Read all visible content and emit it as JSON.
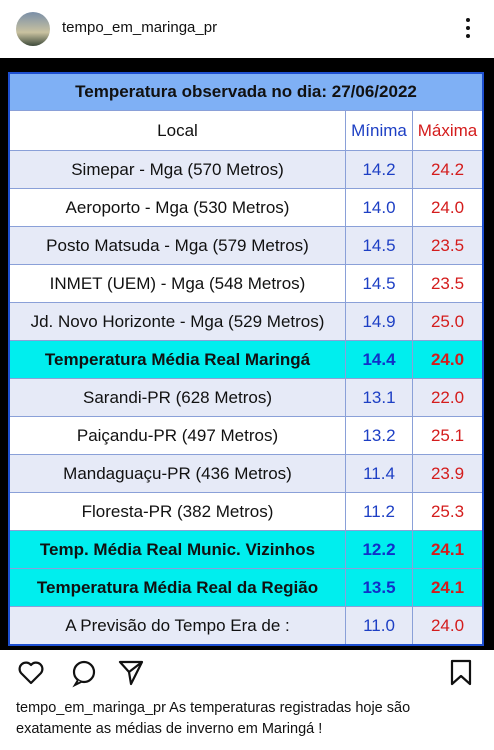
{
  "header": {
    "username": "tempo_em_maringa_pr"
  },
  "table": {
    "title": "Temperatura observada no dia: 27/06/2022",
    "header": {
      "local": "Local",
      "min": "Mínima",
      "max": "Máxima"
    },
    "rows": [
      {
        "local": "Simepar - Mga  (570 Metros)",
        "min": "14.2",
        "max": "24.2"
      },
      {
        "local": "Aeroporto - Mga (530 Metros)",
        "min": "14.0",
        "max": "24.0"
      },
      {
        "local": "Posto Matsuda - Mga (579 Metros)",
        "min": "14.5",
        "max": "23.5"
      },
      {
        "local": "INMET (UEM) - Mga  (548 Metros)",
        "min": "14.5",
        "max": "23.5"
      },
      {
        "local": "Jd. Novo Horizonte - Mga (529 Metros)",
        "min": "14.9",
        "max": "25.0"
      },
      {
        "local": "Temperatura Média Real Maringá",
        "min": "14.4",
        "max": "24.0",
        "highlight": true
      },
      {
        "local": "Sarandi-PR  (628 Metros)",
        "min": "13.1",
        "max": "22.0"
      },
      {
        "local": "Paiçandu-PR (497 Metros)",
        "min": "13.2",
        "max": "25.1"
      },
      {
        "local": "Mandaguaçu-PR (436 Metros)",
        "min": "11.4",
        "max": "23.9"
      },
      {
        "local": "Floresta-PR (382 Metros)",
        "min": "11.2",
        "max": "25.3"
      },
      {
        "local": "Temp. Média Real Munic. Vizinhos",
        "min": "12.2",
        "max": "24.1",
        "highlight": true
      },
      {
        "local": "Temperatura Média Real da Região",
        "min": "13.5",
        "max": "24.1",
        "highlight": true
      },
      {
        "local": "A Previsão do Tempo Era de :",
        "min": "11.0",
        "max": "24.0"
      }
    ]
  },
  "caption": {
    "username": "tempo_em_maringa_pr",
    "text": "As temperaturas registradas hoje são exatamente as médias de inverno em Maringá !"
  }
}
